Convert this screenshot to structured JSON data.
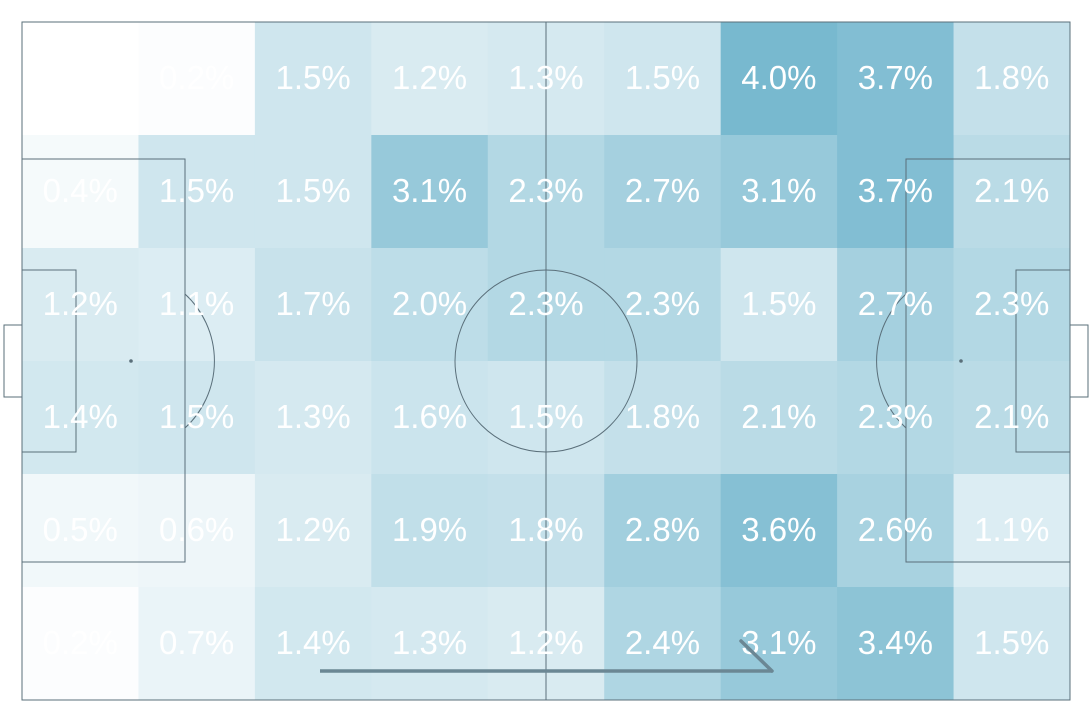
{
  "chart_data": {
    "type": "heatmap",
    "title": "",
    "xlabel": "",
    "ylabel": "",
    "grid_cols": 9,
    "grid_rows": 6,
    "value_unit": "%",
    "colormap": {
      "low": "#ffffff",
      "high": "#78b9cf"
    },
    "values": [
      [
        0.1,
        0.2,
        1.5,
        1.2,
        1.3,
        1.5,
        4.0,
        3.7,
        1.8
      ],
      [
        0.4,
        1.5,
        1.5,
        3.1,
        2.3,
        2.7,
        3.1,
        3.7,
        2.1
      ],
      [
        1.2,
        1.1,
        1.7,
        2.0,
        2.3,
        2.3,
        1.5,
        2.7,
        2.3
      ],
      [
        1.4,
        1.5,
        1.3,
        1.6,
        1.5,
        1.8,
        2.1,
        2.3,
        2.1
      ],
      [
        0.5,
        0.6,
        1.2,
        1.9,
        1.8,
        2.8,
        3.6,
        2.6,
        1.1
      ],
      [
        0.2,
        0.7,
        1.4,
        1.3,
        1.2,
        2.4,
        3.1,
        3.4,
        1.5
      ]
    ],
    "labels": [
      [
        "0.1%",
        "0.2%",
        "1.5%",
        "1.2%",
        "1.3%",
        "1.5%",
        "4.0%",
        "3.7%",
        "1.8%"
      ],
      [
        "0.4%",
        "1.5%",
        "1.5%",
        "3.1%",
        "2.3%",
        "2.7%",
        "3.1%",
        "3.7%",
        "2.1%"
      ],
      [
        "1.2%",
        "1.1%",
        "1.7%",
        "2.0%",
        "2.3%",
        "2.3%",
        "1.5%",
        "2.7%",
        "2.3%"
      ],
      [
        "1.4%",
        "1.5%",
        "1.3%",
        "1.6%",
        "1.5%",
        "1.8%",
        "2.1%",
        "2.3%",
        "2.1%"
      ],
      [
        "0.5%",
        "0.6%",
        "1.2%",
        "1.9%",
        "1.8%",
        "2.8%",
        "3.6%",
        "2.6%",
        "1.1%"
      ],
      [
        "0.2%",
        "0.7%",
        "1.4%",
        "1.3%",
        "1.2%",
        "2.4%",
        "3.1%",
        "3.4%",
        "1.5%"
      ]
    ],
    "background": "football-pitch",
    "line_color": "#5a6f7a",
    "label_color": "#ffffff",
    "direction_arrow": "left-to-right"
  }
}
